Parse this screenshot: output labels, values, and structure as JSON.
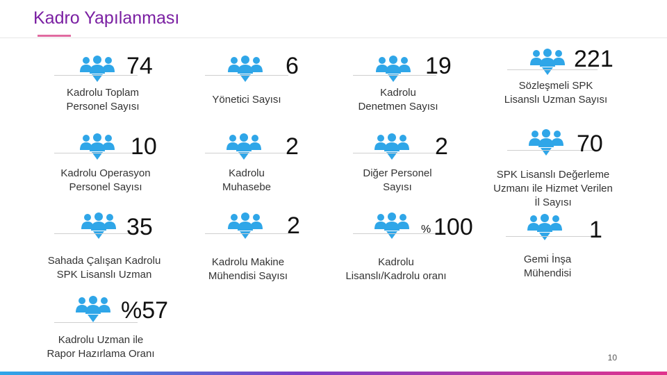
{
  "title": "Kadro Yapılanması",
  "icon_name": "people-group-icon",
  "accent_color": "#2fa6e8",
  "title_color": "#7a1fa2",
  "stats": [
    {
      "value": "74",
      "label": "Kadrolu Toplam\nPersonel Sayısı"
    },
    {
      "value": "6",
      "label": "Yönetici Sayısı"
    },
    {
      "value": "19",
      "label": "Kadrolu\nDenetmen Sayısı"
    },
    {
      "value": "221",
      "label": "Sözleşmeli SPK\nLisanslı Uzman Sayısı"
    },
    {
      "value": "10",
      "label": "Kadrolu Operasyon\nPersonel Sayısı"
    },
    {
      "value": "2",
      "label": "Kadrolu\nMuhasebe"
    },
    {
      "value": "2",
      "label": "Diğer Personel\nSayısı"
    },
    {
      "value": "70",
      "label": "SPK Lisanslı Değerleme\nUzmanı ile Hizmet Verilen\nİl Sayısı"
    },
    {
      "value": "35",
      "label": "Sahada Çalışan Kadrolu\nSPK Lisanslı Uzman"
    },
    {
      "value": "2",
      "label": "Kadrolu Makine\nMühendisi Sayısı"
    },
    {
      "value": "100",
      "prefix": "%",
      "label": "Kadrolu\nLisanslı/Kadrolu oranı"
    },
    {
      "value": "1",
      "label": "Gemi İnşa\nMühendisi"
    },
    {
      "value": "%57",
      "label": "Kadrolu Uzman ile\nRapor Hazırlama Oranı"
    }
  ],
  "page_number": "10"
}
